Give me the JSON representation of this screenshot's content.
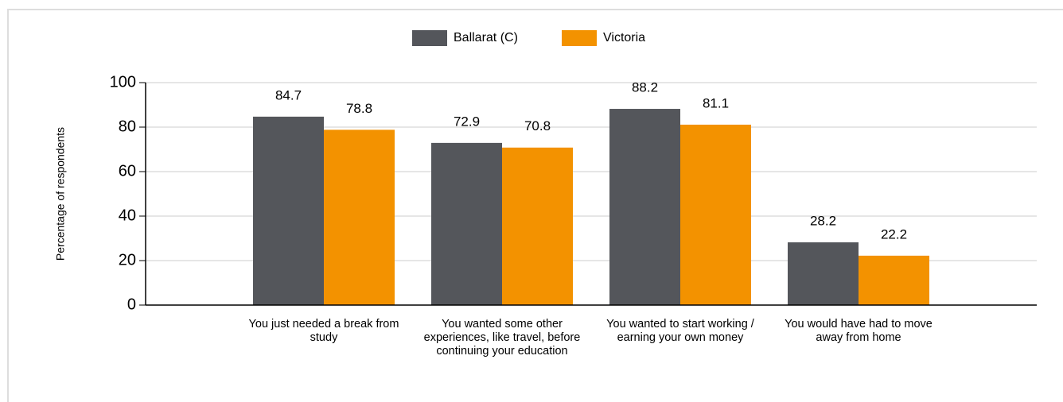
{
  "chart_data": {
    "type": "bar",
    "ylabel": "Percentage of respondents",
    "categories": [
      "You just needed a break from study",
      "You wanted some other experiences, like travel, before continuing your education",
      "You wanted to start working / earning your own money",
      "You would have had to move away from home"
    ],
    "series": [
      {
        "name": "Ballarat (C)",
        "color": "#54565b",
        "values": [
          84.7,
          72.9,
          88.2,
          28.2
        ]
      },
      {
        "name": "Victoria",
        "color": "#f39200",
        "values": [
          78.8,
          70.8,
          81.1,
          22.2
        ]
      }
    ],
    "ylim": [
      0,
      100
    ],
    "yticks": [
      0,
      20,
      40,
      60,
      80,
      100
    ],
    "grid": true,
    "legend": "top"
  }
}
